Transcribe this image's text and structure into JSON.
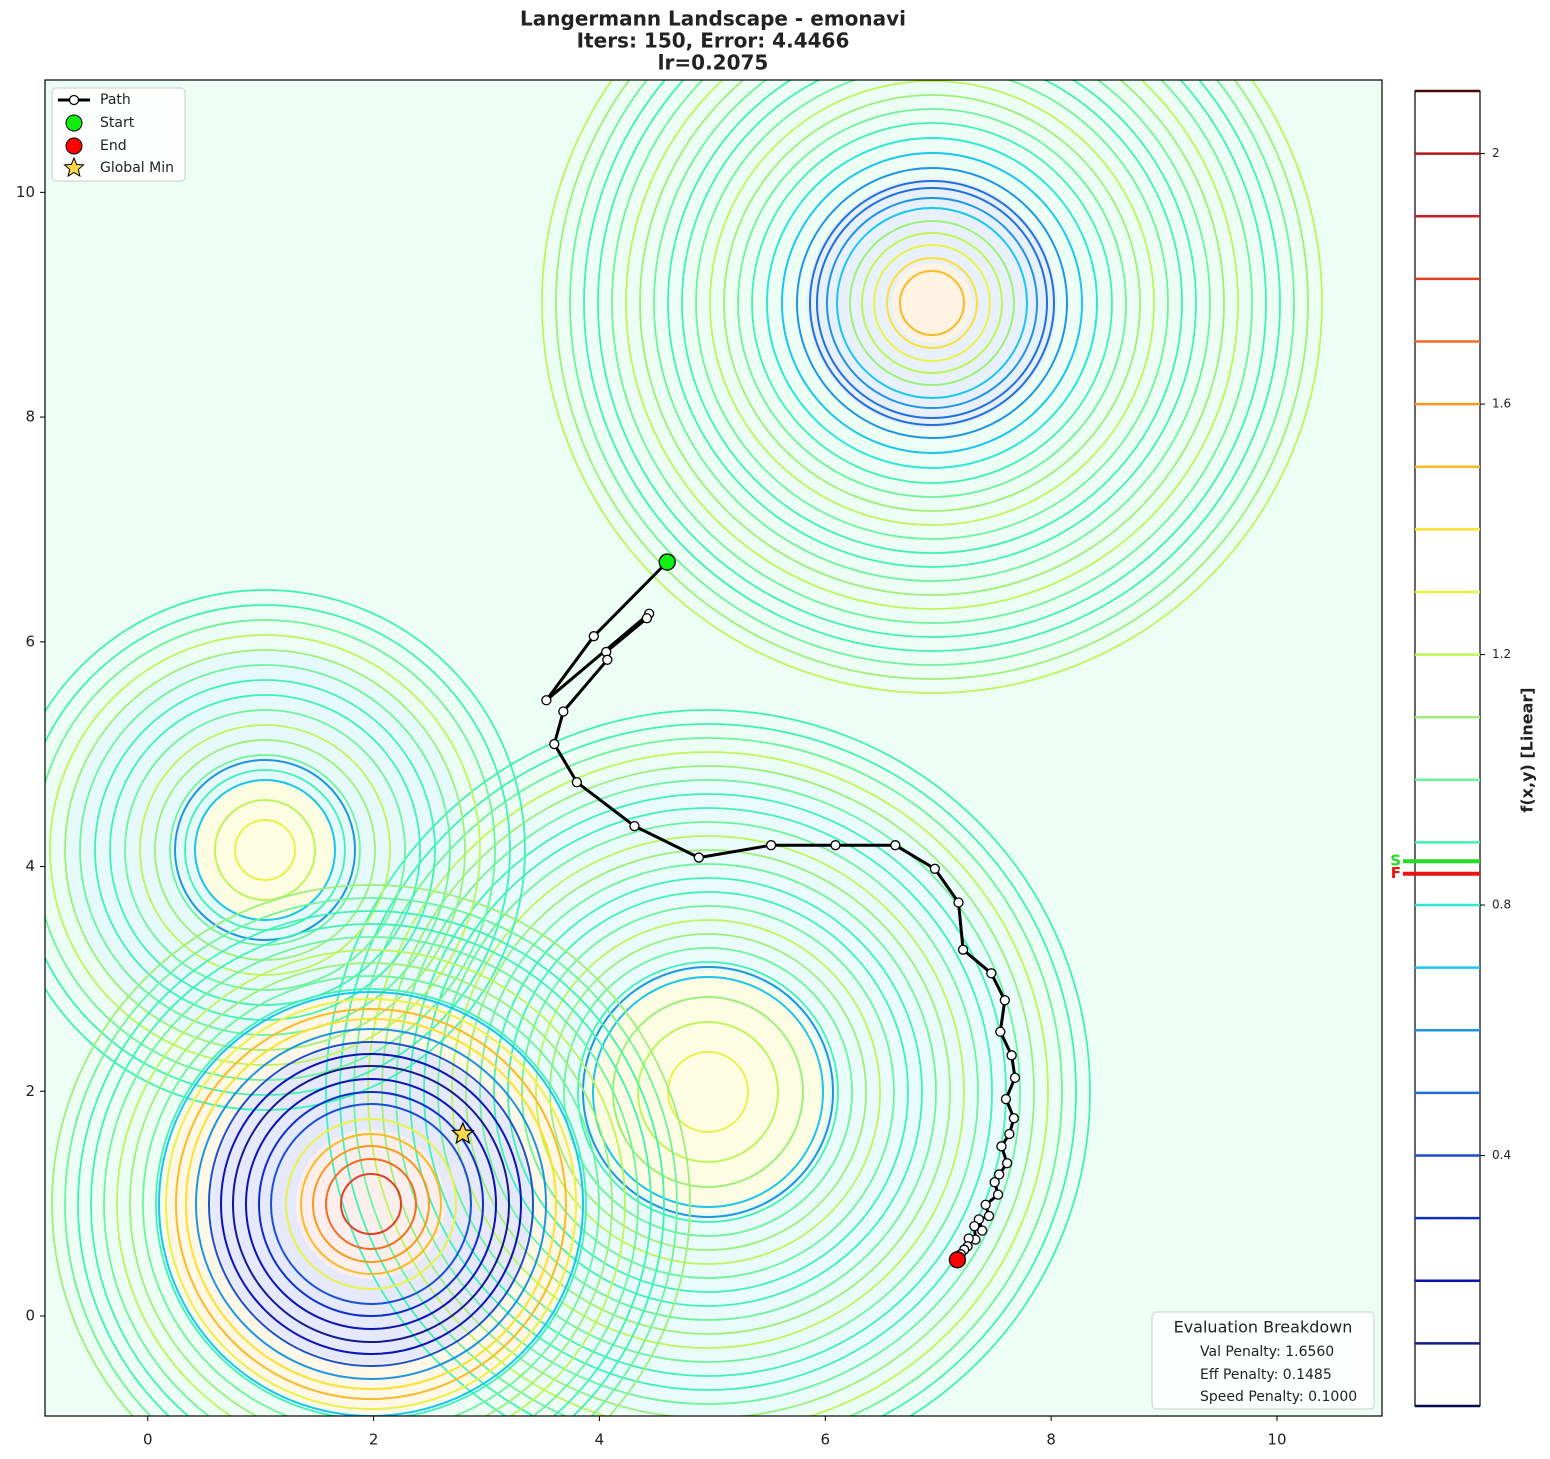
{
  "chart_data": {
    "type": "contour",
    "title": [
      "Langermann Landscape - emonavi",
      "Iters: 150, Error: 4.4466",
      "lr=0.2075"
    ],
    "xlim": [
      -0.91,
      10.93
    ],
    "xticks": [
      0,
      2,
      4,
      6,
      8,
      10
    ],
    "ylim": [
      -0.89,
      11.0
    ],
    "yticks": [
      0,
      2,
      4,
      6,
      8,
      10
    ],
    "legend": "upper left",
    "path": {
      "name": "Path",
      "color": "#000000",
      "x": [
        4.6,
        3.95,
        3.53,
        4.44,
        4.42,
        4.06,
        4.07,
        3.68,
        3.6,
        3.8,
        4.31,
        4.88,
        5.52,
        6.09,
        6.62,
        6.97,
        7.18,
        7.22,
        7.47,
        7.59,
        7.55,
        7.65,
        7.68,
        7.6,
        7.67,
        7.63,
        7.56,
        7.61,
        7.54,
        7.5,
        7.53,
        7.42,
        7.45,
        7.36,
        7.39,
        7.32,
        7.33,
        7.27,
        7.26,
        7.23,
        7.2,
        7.17
      ],
      "y": [
        6.71,
        6.05,
        5.48,
        6.25,
        6.21,
        5.91,
        5.84,
        5.38,
        5.09,
        4.75,
        4.36,
        4.08,
        4.19,
        4.19,
        4.19,
        3.98,
        3.68,
        3.26,
        3.05,
        2.81,
        2.53,
        2.32,
        2.12,
        1.93,
        1.76,
        1.62,
        1.51,
        1.36,
        1.26,
        1.19,
        1.08,
        0.99,
        0.89,
        0.86,
        0.76,
        0.8,
        0.68,
        0.69,
        0.62,
        0.59,
        0.55,
        0.5
      ]
    },
    "start": {
      "name": "Start",
      "x": 4.6,
      "y": 6.71,
      "color": "#11ee11"
    },
    "end": {
      "name": "End",
      "x": 7.17,
      "y": 0.5,
      "color": "#ff0000"
    },
    "global_min": {
      "name": "Global Min",
      "x": 2.79,
      "y": 1.62,
      "color": "#ffd84a"
    },
    "colorbar": {
      "label": "f(x,y) [Linear]",
      "lim": [
        0,
        2.1
      ],
      "ticks": [
        0.4,
        0.8,
        1.2,
        1.6,
        2.0
      ],
      "levels": [
        0.0,
        0.1,
        0.2,
        0.3,
        0.4,
        0.5,
        0.6,
        0.7,
        0.8,
        0.9,
        1.0,
        1.1,
        1.2,
        1.3,
        1.4,
        1.5,
        1.6,
        1.7,
        1.8,
        1.9,
        2.0,
        2.1
      ],
      "level_colors": [
        "#0a0a50",
        "#141a8c",
        "#0a14b4",
        "#0b2fc9",
        "#1850d0",
        "#1e70dd",
        "#1f95e0",
        "#18c6ee",
        "#2de8d6",
        "#3ff2b4",
        "#6ef39a",
        "#9cf07a",
        "#bdf55a",
        "#e8f24a",
        "#fbe030",
        "#f9bb25",
        "#f79a20",
        "#ee6d1e",
        "#e04020",
        "#cc2020",
        "#b01818",
        "#4a0808"
      ],
      "markers": [
        {
          "label": "S",
          "value": 0.87,
          "color": "#22dd22"
        },
        {
          "label": "F",
          "value": 0.85,
          "color": "#ee1111"
        }
      ]
    },
    "evaluation": {
      "title": "Evaluation Breakdown",
      "lines": [
        "Val Penalty: 1.6560",
        "Eff Penalty: 0.1485",
        "Speed Penalty: 0.1000"
      ]
    }
  }
}
